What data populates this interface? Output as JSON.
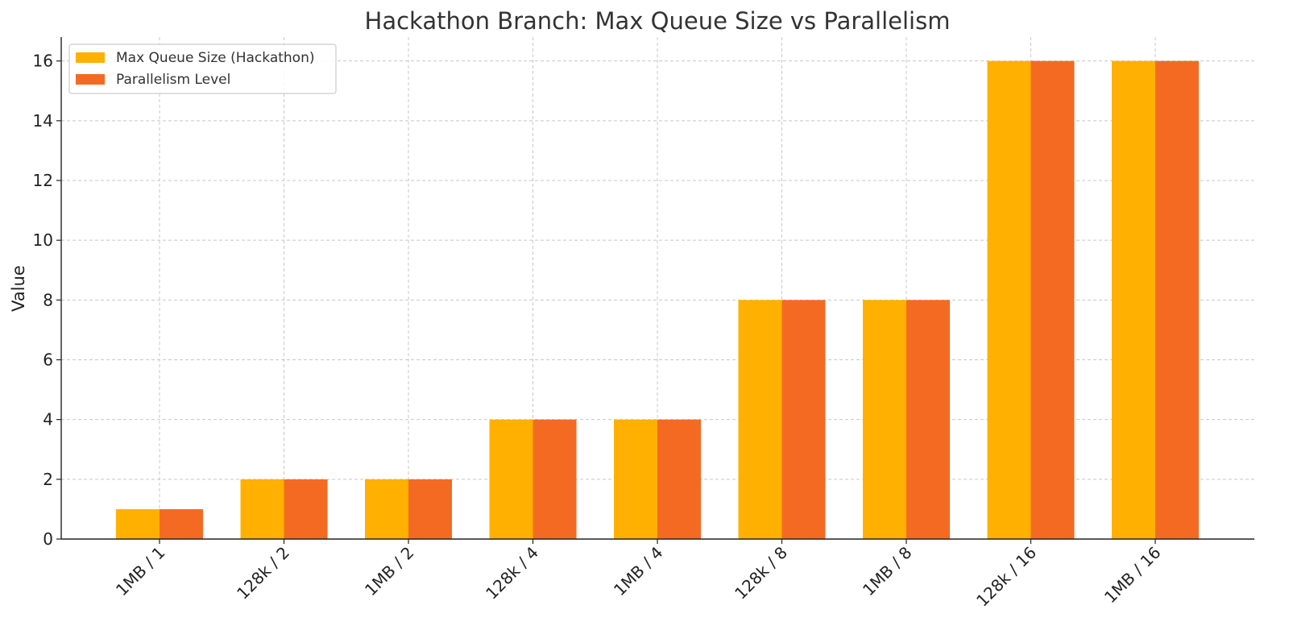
{
  "chart_data": {
    "type": "bar",
    "title": "Hackathon Branch: Max Queue Size vs Parallelism",
    "xlabel": "",
    "ylabel": "Value",
    "categories": [
      "1MB / 1",
      "128k / 2",
      "1MB / 2",
      "128k / 4",
      "1MB / 4",
      "128k / 8",
      "1MB / 8",
      "128k / 16",
      "1MB / 16"
    ],
    "series": [
      {
        "name": "Max Queue Size (Hackathon)",
        "color": "#FFB000",
        "values": [
          1,
          2,
          2,
          4,
          4,
          8,
          8,
          16,
          16
        ]
      },
      {
        "name": "Parallelism Level",
        "color": "#F46A22",
        "values": [
          1,
          2,
          2,
          4,
          4,
          8,
          8,
          16,
          16
        ]
      }
    ],
    "ylim": [
      0,
      16.8
    ],
    "yticks": [
      0,
      2,
      4,
      6,
      8,
      10,
      12,
      14,
      16
    ],
    "grid": true,
    "legend_position": "top-left"
  }
}
